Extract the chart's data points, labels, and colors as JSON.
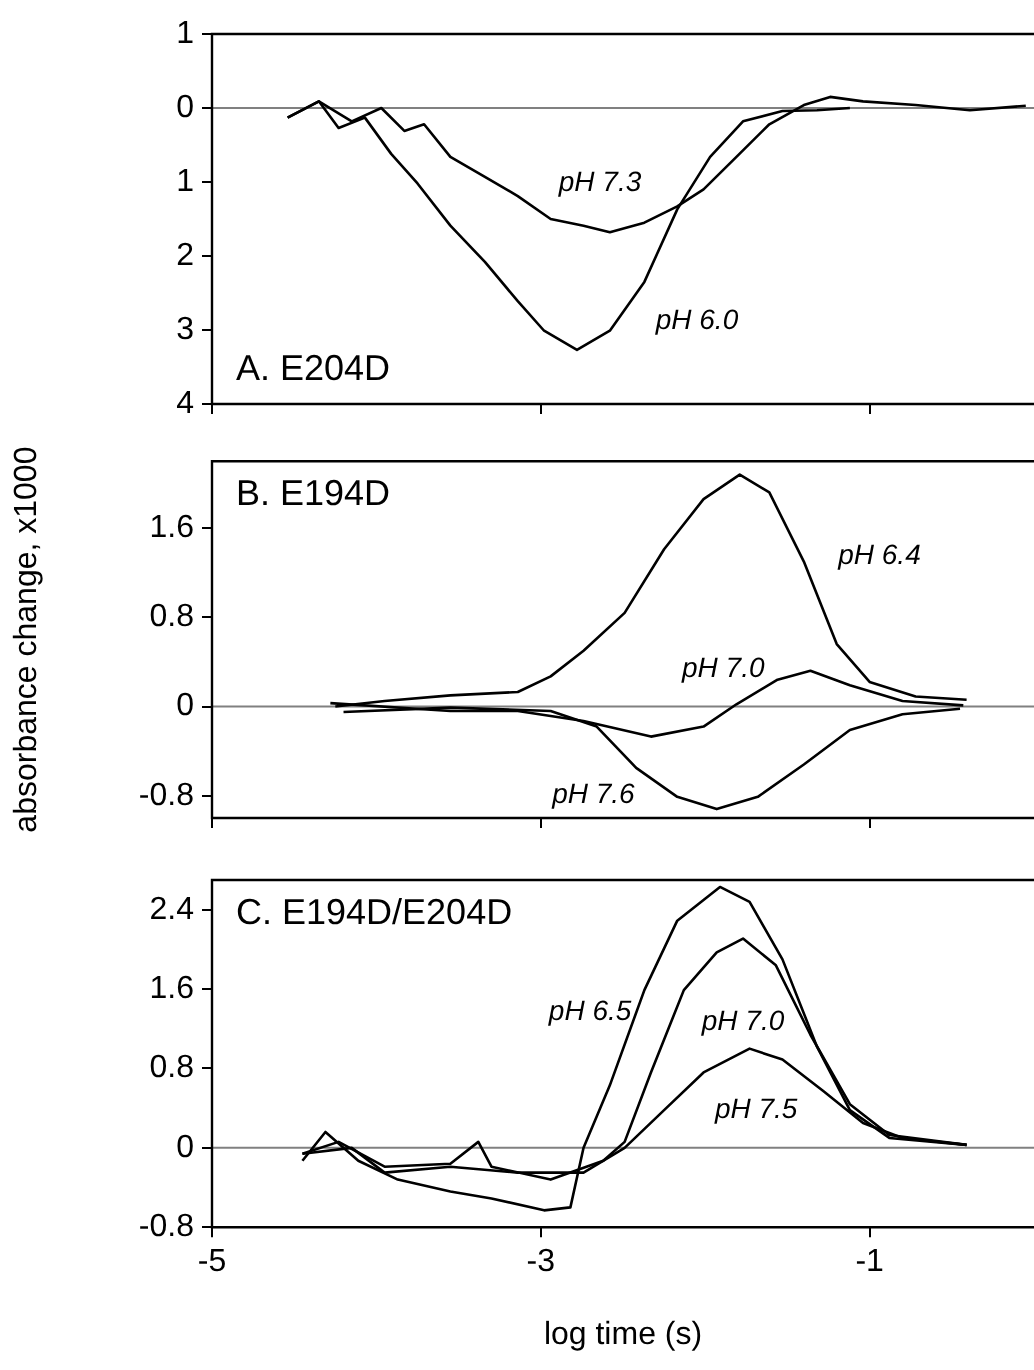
{
  "chart_data": [
    {
      "type": "line",
      "title": "A. E204D",
      "marker": "none",
      "tick_labels": "y",
      "xlim": [
        -5,
        0
      ],
      "xticks": [
        -5,
        -3,
        -1
      ],
      "ylim": [
        4,
        -1
      ],
      "yticks": [
        {
          "value": -1,
          "label": "1"
        },
        0,
        1,
        2,
        3,
        4
      ],
      "ref_lines": [
        {
          "axis": "y",
          "value": 0,
          "color": "#808080"
        }
      ],
      "annotations": [
        "pH 7.3",
        "pH 6.0"
      ],
      "series": [
        {
          "color": "#000000",
          "x": [
            -4.54,
            -4.35,
            -4.15,
            -3.97,
            -3.83,
            -3.71,
            -3.55,
            -3.34,
            -3.14,
            -2.94,
            -2.74,
            -2.58,
            -2.37,
            -2.17,
            -2.01,
            -1.81,
            -1.61,
            -1.4,
            -1.24,
            -1.04,
            -0.72,
            -0.39,
            -0.05
          ],
          "values": [
            0.13,
            -0.09,
            0.18,
            0,
            0.31,
            0.22,
            0.66,
            0.93,
            1.19,
            1.5,
            1.59,
            1.68,
            1.55,
            1.33,
            1.1,
            0.66,
            0.22,
            -0.04,
            -0.15,
            -0.09,
            -0.04,
            0.03,
            -0.03
          ]
        },
        {
          "color": "#000000",
          "x": [
            -4.54,
            -4.35,
            -4.23,
            -4.07,
            -3.91,
            -3.75,
            -3.55,
            -3.34,
            -3.14,
            -2.98,
            -2.78,
            -2.58,
            -2.37,
            -2.17,
            -1.97,
            -1.77,
            -1.53,
            -1.32,
            -1.12
          ],
          "values": [
            0.13,
            -0.09,
            0.27,
            0.13,
            0.62,
            1.02,
            1.59,
            2.08,
            2.61,
            3.01,
            3.27,
            3.01,
            2.35,
            1.37,
            0.66,
            0.18,
            0.04,
            0.03,
            0
          ]
        }
      ]
    },
    {
      "type": "line",
      "title": "B. E194D",
      "ylabel": "absorbance change, x1000",
      "marker": "none",
      "tick_labels": "y",
      "xlim": [
        -5,
        0
      ],
      "xticks": [
        -5,
        -3,
        -1
      ],
      "ylim": [
        -1,
        2.2
      ],
      "yticks": [
        -0.8,
        0,
        0.8,
        1.6
      ],
      "ref_lines": [
        {
          "axis": "y",
          "value": 0,
          "color": "#808080"
        }
      ],
      "annotations": [
        "pH 6.4",
        "pH 7.0",
        "pH 7.6"
      ],
      "series": [
        {
          "color": "#000000",
          "x": [
            -4.25,
            -3.95,
            -3.55,
            -3.14,
            -2.94,
            -2.74,
            -2.49,
            -2.25,
            -2.01,
            -1.79,
            -1.61,
            -1.4,
            -1.2,
            -1.0,
            -0.72,
            -0.41
          ],
          "values": [
            0,
            0.05,
            0.1,
            0.13,
            0.27,
            0.5,
            0.84,
            1.41,
            1.86,
            2.08,
            1.92,
            1.3,
            0.56,
            0.22,
            0.09,
            0.06
          ]
        },
        {
          "color": "#000000",
          "x": [
            -4.28,
            -3.55,
            -3.14,
            -2.74,
            -2.33,
            -2.01,
            -1.81,
            -1.56,
            -1.36,
            -1.12,
            -0.8,
            -0.43
          ],
          "values": [
            0.03,
            -0.04,
            -0.04,
            -0.13,
            -0.27,
            -0.18,
            0.02,
            0.24,
            0.32,
            0.19,
            0.05,
            0.01
          ]
        },
        {
          "color": "#000000",
          "x": [
            -4.2,
            -3.55,
            -2.94,
            -2.66,
            -2.42,
            -2.17,
            -1.93,
            -1.68,
            -1.4,
            -1.12,
            -0.8,
            -0.45
          ],
          "values": [
            -0.05,
            -0.01,
            -0.04,
            -0.18,
            -0.55,
            -0.81,
            -0.92,
            -0.81,
            -0.52,
            -0.21,
            -0.07,
            -0.02
          ]
        }
      ]
    },
    {
      "type": "line",
      "title": "C. E194D/E204D",
      "xlabel": "log time (s)",
      "marker": "none",
      "xlim": [
        -5,
        0
      ],
      "xticks": [
        -5,
        -3,
        -1
      ],
      "ylim": [
        -0.8,
        2.7
      ],
      "yticks": [
        -0.8,
        0,
        0.8,
        1.6,
        2.4
      ],
      "ref_lines": [
        {
          "axis": "y",
          "value": 0,
          "color": "#808080"
        }
      ],
      "annotations": [
        "pH 6.5",
        "pH 7.0",
        "pH 7.5"
      ],
      "series": [
        {
          "color": "#000000",
          "x": [
            -4.45,
            -4.31,
            -4.11,
            -3.87,
            -3.55,
            -3.3,
            -2.98,
            -2.82,
            -2.74,
            -2.58,
            -2.37,
            -2.17,
            -1.91,
            -1.73,
            -1.53,
            -1.32,
            -1.12,
            -0.88,
            -0.41
          ],
          "values": [
            -0.13,
            0.16,
            -0.13,
            -0.32,
            -0.44,
            -0.51,
            -0.63,
            -0.6,
            0,
            0.63,
            1.59,
            2.29,
            2.63,
            2.48,
            1.9,
            1.02,
            0.38,
            0.1,
            0.03
          ]
        },
        {
          "color": "#000000",
          "x": [
            -4.45,
            -4.23,
            -3.95,
            -3.55,
            -3.38,
            -3.3,
            -2.94,
            -2.62,
            -2.49,
            -2.33,
            -2.13,
            -1.93,
            -1.77,
            -1.57,
            -1.36,
            -1.12,
            -0.88,
            -0.41
          ],
          "values": [
            -0.06,
            0.06,
            -0.19,
            -0.16,
            0.06,
            -0.19,
            -0.32,
            -0.13,
            0.06,
            0.76,
            1.59,
            1.97,
            2.11,
            1.84,
            1.14,
            0.44,
            0.13,
            0.03
          ]
        },
        {
          "color": "#000000",
          "x": [
            -4.45,
            -4.15,
            -3.95,
            -3.55,
            -3.14,
            -2.74,
            -2.49,
            -2.25,
            -2.01,
            -1.73,
            -1.53,
            -1.28,
            -1.04,
            -0.8,
            -0.41
          ],
          "values": [
            -0.06,
            0,
            -0.25,
            -0.19,
            -0.25,
            -0.25,
            0,
            0.38,
            0.76,
            1.0,
            0.89,
            0.57,
            0.25,
            0.1,
            0.03
          ]
        }
      ]
    }
  ]
}
